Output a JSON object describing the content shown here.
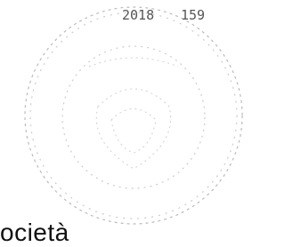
{
  "stamp": {
    "year": "2018",
    "number": "159"
  },
  "footer_text": "ocietà"
}
